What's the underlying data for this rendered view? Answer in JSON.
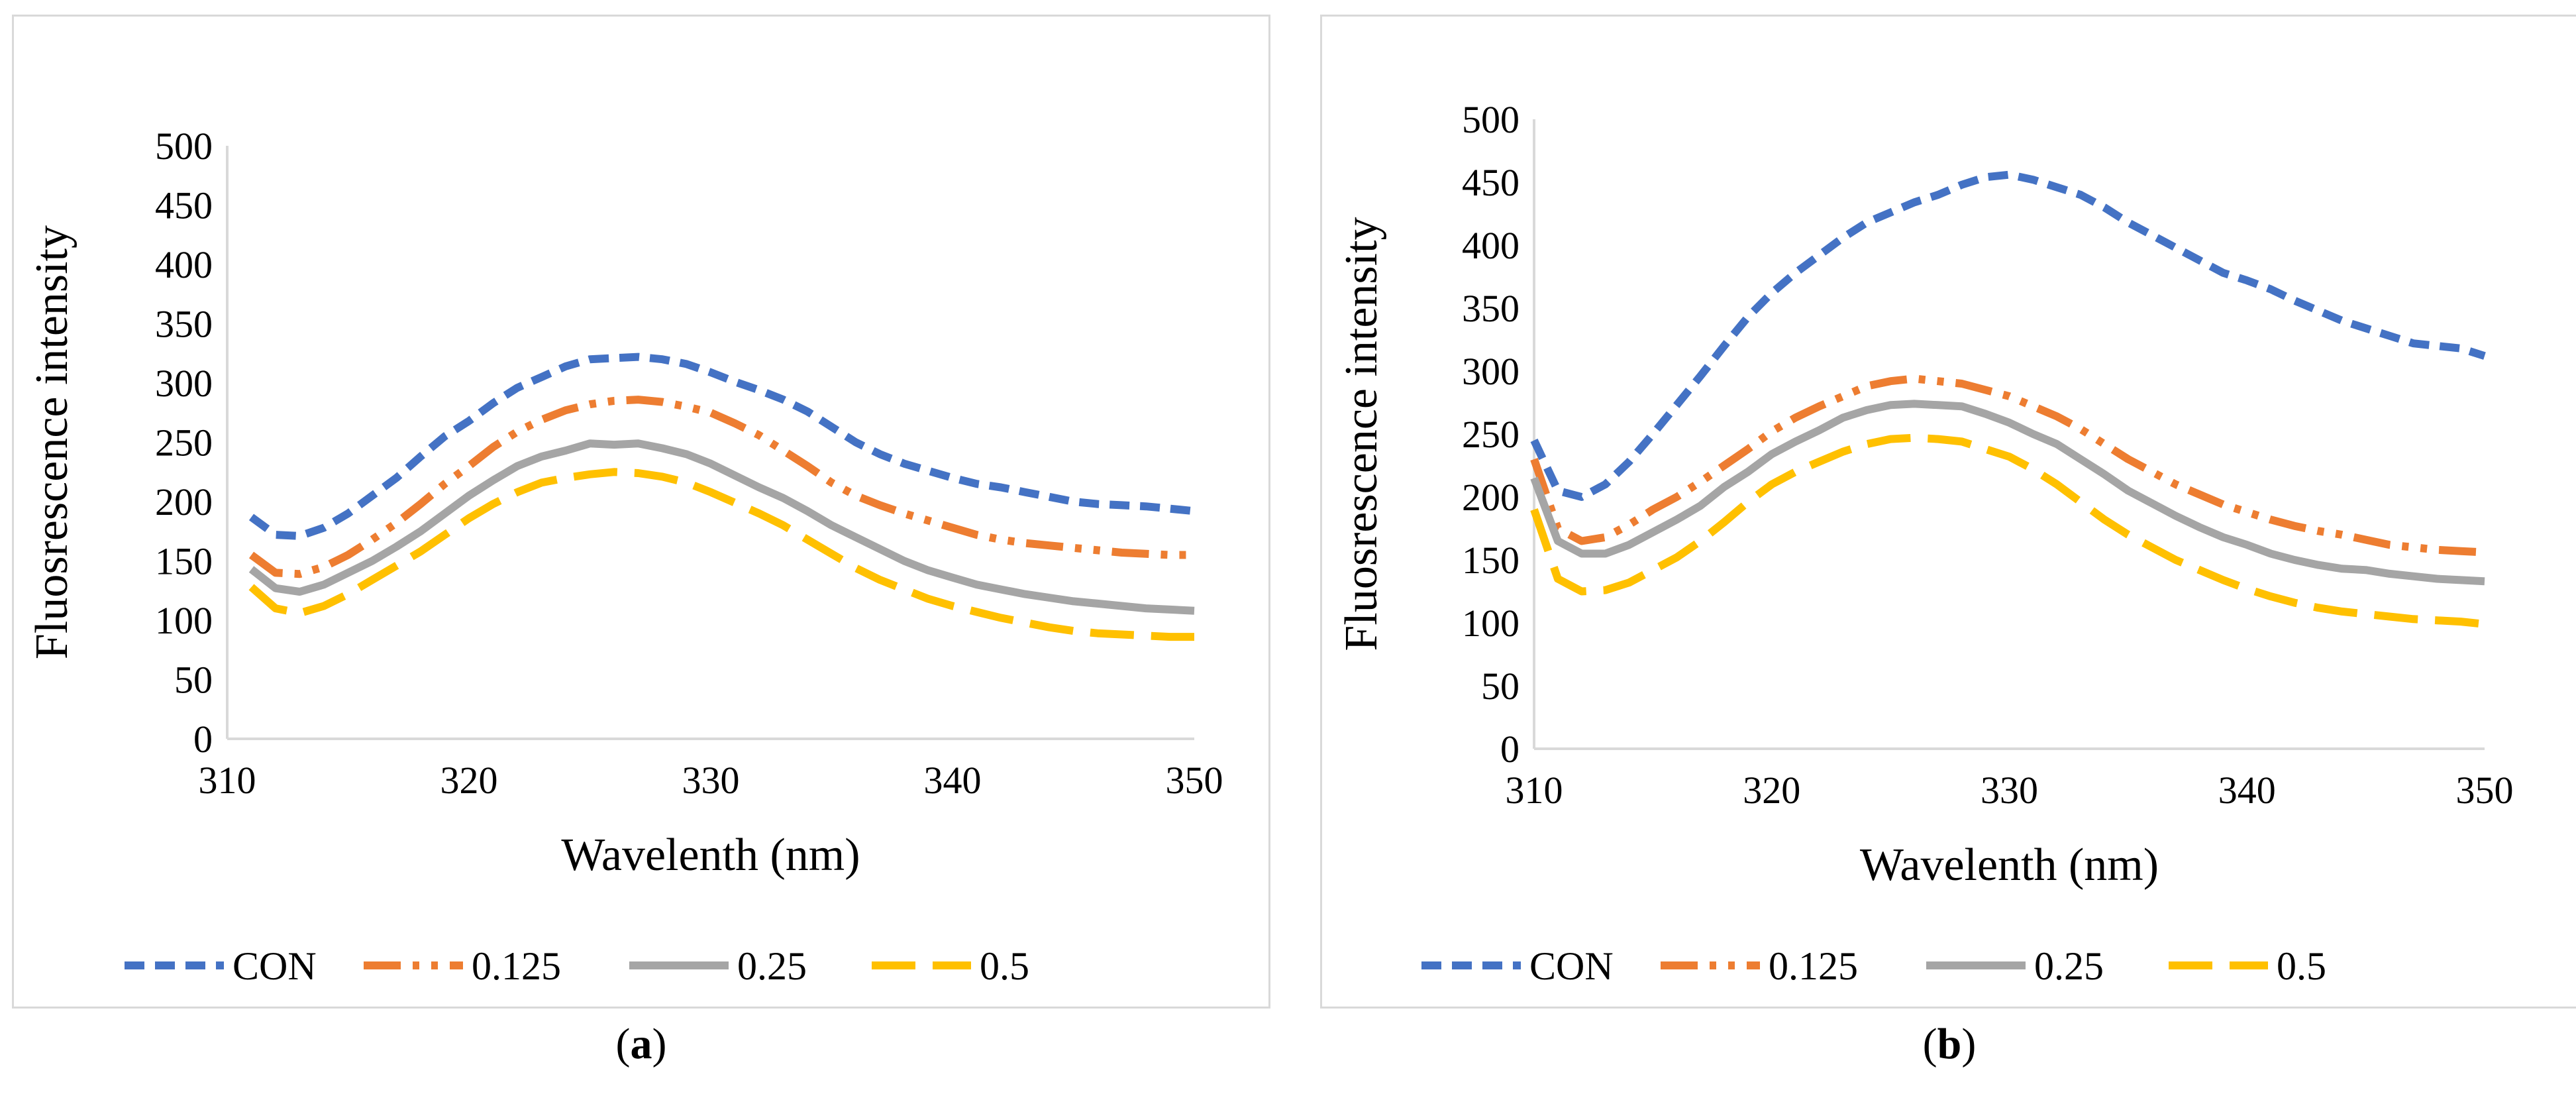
{
  "colors": {
    "CON": "#4472C4",
    "0.125": "#ED7D31",
    "0.25": "#A5A5A5",
    "0.5": "#FFC000",
    "axis": "#d9d9d9",
    "text": "#000000"
  },
  "panels": [
    {
      "label_open": "(",
      "label_letter": "a",
      "label_close": ")"
    },
    {
      "label_open": "(",
      "label_letter": "b",
      "label_close": ")"
    }
  ],
  "chart_data": [
    {
      "type": "line",
      "title": "",
      "xlabel": "Wavelenth (nm)",
      "ylabel": "Fluosrescence intensity",
      "xlim": [
        310,
        350
      ],
      "ylim": [
        0,
        500
      ],
      "xticks": [
        310,
        320,
        330,
        340,
        350
      ],
      "yticks": [
        0,
        50,
        100,
        150,
        200,
        250,
        300,
        350,
        400,
        450,
        500
      ],
      "legend_position": "bottom",
      "x": [
        311,
        312,
        313,
        314,
        315,
        316,
        317,
        318,
        319,
        320,
        321,
        322,
        323,
        324,
        325,
        326,
        327,
        328,
        329,
        330,
        331,
        332,
        333,
        334,
        335,
        336,
        337,
        338,
        339,
        340,
        341,
        342,
        343,
        344,
        345,
        346,
        347,
        348,
        349,
        350
      ],
      "series": [
        {
          "name": "CON",
          "dash": "short-dash",
          "values": [
            187,
            172,
            171,
            178,
            190,
            205,
            220,
            238,
            255,
            268,
            283,
            296,
            305,
            314,
            320,
            321,
            322,
            320,
            316,
            309,
            301,
            294,
            286,
            276,
            263,
            250,
            240,
            232,
            226,
            220,
            215,
            212,
            208,
            204,
            200,
            198,
            197,
            196,
            194,
            192
          ]
        },
        {
          "name": "0.125",
          "dash": "long-dash-dot-dot",
          "values": [
            155,
            140,
            139,
            145,
            155,
            168,
            182,
            198,
            215,
            230,
            246,
            259,
            269,
            277,
            282,
            285,
            286,
            284,
            280,
            275,
            266,
            256,
            243,
            230,
            216,
            205,
            197,
            190,
            184,
            178,
            172,
            168,
            165,
            163,
            161,
            159,
            157,
            156,
            155,
            155
          ]
        },
        {
          "name": "0.25",
          "dash": "solid",
          "values": [
            143,
            127,
            124,
            130,
            140,
            150,
            162,
            175,
            190,
            205,
            218,
            230,
            238,
            243,
            249,
            248,
            249,
            245,
            240,
            232,
            222,
            212,
            203,
            192,
            180,
            170,
            160,
            150,
            142,
            136,
            130,
            126,
            122,
            119,
            116,
            114,
            112,
            110,
            109,
            108
          ]
        },
        {
          "name": "0.5",
          "dash": "long-dash",
          "values": [
            128,
            110,
            106,
            112,
            122,
            134,
            146,
            158,
            172,
            186,
            198,
            208,
            216,
            220,
            223,
            225,
            224,
            221,
            216,
            208,
            199,
            190,
            180,
            168,
            156,
            144,
            134,
            126,
            118,
            112,
            107,
            102,
            98,
            94,
            91,
            89,
            88,
            87,
            86,
            86
          ]
        }
      ]
    },
    {
      "type": "line",
      "title": "",
      "xlabel": "Wavelenth (nm)",
      "ylabel": "Fluosrescence intensity",
      "xlim": [
        310,
        350
      ],
      "ylim": [
        0,
        500
      ],
      "xticks": [
        310,
        320,
        330,
        340,
        350
      ],
      "yticks": [
        0,
        50,
        100,
        150,
        200,
        250,
        300,
        350,
        400,
        450,
        500
      ],
      "legend_position": "bottom",
      "x": [
        310,
        311,
        312,
        313,
        314,
        315,
        316,
        317,
        318,
        319,
        320,
        321,
        322,
        323,
        324,
        325,
        326,
        327,
        328,
        329,
        330,
        331,
        332,
        333,
        334,
        335,
        336,
        337,
        338,
        339,
        340,
        341,
        342,
        343,
        344,
        345,
        346,
        347,
        348,
        349,
        350
      ],
      "series": [
        {
          "name": "CON",
          "dash": "short-dash",
          "values": [
            245,
            205,
            200,
            210,
            228,
            250,
            273,
            296,
            320,
            343,
            362,
            378,
            392,
            406,
            418,
            426,
            434,
            440,
            448,
            454,
            456,
            452,
            446,
            440,
            430,
            418,
            408,
            398,
            388,
            378,
            372,
            365,
            356,
            348,
            340,
            334,
            328,
            322,
            320,
            318,
            312
          ]
        },
        {
          "name": "0.125",
          "dash": "long-dash-dot-dot",
          "values": [
            230,
            175,
            165,
            168,
            178,
            190,
            200,
            212,
            225,
            238,
            252,
            263,
            272,
            280,
            288,
            292,
            294,
            292,
            290,
            285,
            280,
            272,
            264,
            254,
            242,
            230,
            220,
            210,
            202,
            194,
            188,
            182,
            177,
            173,
            170,
            166,
            162,
            160,
            158,
            157,
            156
          ]
        },
        {
          "name": "0.25",
          "dash": "solid",
          "values": [
            215,
            165,
            155,
            155,
            162,
            172,
            182,
            193,
            208,
            220,
            234,
            244,
            253,
            263,
            269,
            273,
            274,
            273,
            272,
            266,
            259,
            250,
            242,
            230,
            218,
            205,
            195,
            185,
            176,
            168,
            162,
            155,
            150,
            146,
            143,
            142,
            139,
            137,
            135,
            134,
            133
          ]
        },
        {
          "name": "0.5",
          "dash": "long-dash",
          "values": [
            190,
            135,
            125,
            126,
            132,
            142,
            152,
            165,
            180,
            196,
            210,
            220,
            228,
            236,
            242,
            246,
            247,
            246,
            244,
            238,
            232,
            222,
            210,
            196,
            182,
            170,
            160,
            150,
            142,
            134,
            127,
            121,
            116,
            112,
            109,
            107,
            105,
            103,
            102,
            101,
            99
          ]
        }
      ]
    }
  ]
}
